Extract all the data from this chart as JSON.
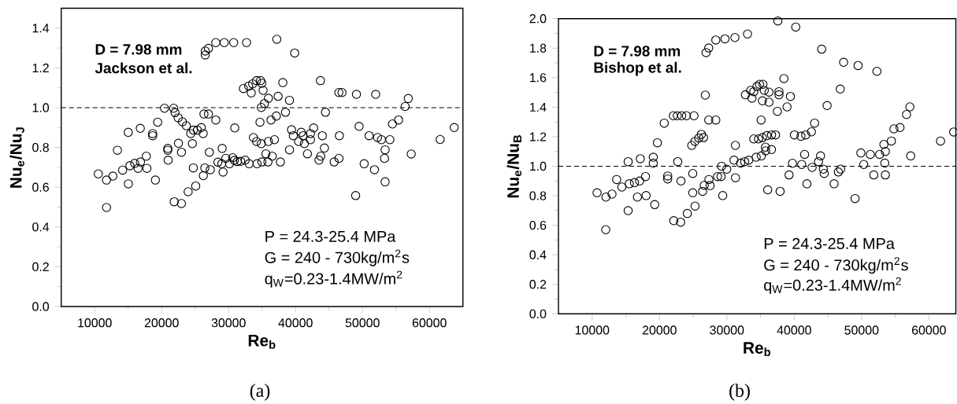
{
  "chart_data": [
    {
      "type": "scatter",
      "xlabel": "Re$_{b}$",
      "ylabel": "Nu$_{e}$/Nu$_{J}$",
      "xlim": [
        5000,
        65000
      ],
      "ylim": [
        0,
        1.5
      ],
      "xticks": [
        10000,
        20000,
        30000,
        40000,
        50000,
        60000
      ],
      "yticks": [
        {
          "value": 0,
          "label": "0.0"
        },
        {
          "value": 0.2,
          "label": "0.2"
        },
        {
          "value": 0.4,
          "label": "0.4"
        },
        {
          "value": 0.6,
          "label": "0.6"
        },
        {
          "value": 0.8,
          "label": "0.8"
        },
        {
          "value": 1.0,
          "label": "1.0"
        },
        {
          "value": 1.2,
          "label": "1.2"
        },
        {
          "value": 1.4,
          "label": "1.4"
        }
      ],
      "grid": false,
      "marker": "circle",
      "ref_lines": [
        {
          "axis": "y",
          "value": 1.0,
          "line_style": "dashed",
          "color": "#000000"
        }
      ],
      "annotations": [
        "D = 7.98 mm",
        "Jackson et al.",
        "P = 24.3-25.4 MPa",
        "G = 240 - 730kg/m$^{2}$s",
        "q$_{W}$=0.23-1.4MW/m$^{2}$",
        "(a)"
      ],
      "series": [
        {
          "color": "#000000",
          "x": [
            26520,
            26520,
            26990,
            28090,
            29350,
            30760,
            32680,
            37200,
            39870,
            32210,
            33000,
            33590,
            34180,
            34770,
            34960,
            35160,
            33390,
            38100,
            35950,
            37400,
            39090,
            35360,
            34890,
            43720,
            46470,
            46940,
            49100,
            51970,
            56840,
            56370,
            44470,
            38500,
            37130,
            36340,
            34690,
            55390,
            54480,
            49500,
            42700,
            39400,
            40850,
            42230,
            39670,
            41130,
            40460,
            41320,
            42230,
            44000,
            46550,
            50990,
            52250,
            52830,
            54090,
            33710,
            34180,
            34890,
            35950,
            36850,
            61600,
            63700,
            20430,
            21800,
            22000,
            22470,
            23100,
            23690,
            24360,
            24750,
            25340,
            25930,
            26200,
            24590,
            26320,
            26990,
            28090,
            30920,
            19410,
            16810,
            15010,
            18660,
            18660,
            10540,
            11770,
            11770,
            12720,
            13400,
            14170,
            15030,
            15260,
            15980,
            16480,
            16840,
            17710,
            17800,
            19070,
            20920,
            20920,
            20970,
            21880,
            22510,
            22960,
            22960,
            23960,
            24730,
            25090,
            26230,
            26450,
            27270,
            27130,
            29040,
            28400,
            28990,
            29170,
            29580,
            30130,
            30630,
            30850,
            31310,
            31800,
            32480,
            33070,
            34250,
            34980,
            35570,
            35880,
            36520,
            37740,
            39100,
            41780,
            43500,
            43770,
            44320,
            45770,
            46490,
            48980,
            50250,
            51790,
            53380,
            53290,
            53380,
            57280
          ],
          "values": [
            1.265,
            1.285,
            1.298,
            1.327,
            1.327,
            1.327,
            1.327,
            1.344,
            1.275,
            1.096,
            1.109,
            1.12,
            1.136,
            1.136,
            1.123,
            1.087,
            1.074,
            1.126,
            1.047,
            1.057,
            1.037,
            1.021,
            1.001,
            1.136,
            1.076,
            1.076,
            1.067,
            1.067,
            1.046,
            1.006,
            0.977,
            0.977,
            0.958,
            0.938,
            0.927,
            0.938,
            0.918,
            0.906,
            0.898,
            0.889,
            0.876,
            0.87,
            0.859,
            0.859,
            0.83,
            0.819,
            0.839,
            0.859,
            0.859,
            0.859,
            0.85,
            0.839,
            0.839,
            0.85,
            0.83,
            0.819,
            0.83,
            0.839,
            0.84,
            0.9,
            0.997,
            0.997,
            0.975,
            0.949,
            0.929,
            0.909,
            0.87,
            0.887,
            0.887,
            0.9,
            0.87,
            0.819,
            0.968,
            0.968,
            0.938,
            0.898,
            0.927,
            0.896,
            0.876,
            0.87,
            0.859,
            0.667,
            0.636,
            0.498,
            0.656,
            0.786,
            0.686,
            0.617,
            0.708,
            0.72,
            0.695,
            0.727,
            0.756,
            0.695,
            0.636,
            0.795,
            0.786,
            0.736,
            0.527,
            0.821,
            0.776,
            0.518,
            0.577,
            0.697,
            0.606,
            0.658,
            0.697,
            0.688,
            0.776,
            0.795,
            0.726,
            0.718,
            0.676,
            0.745,
            0.718,
            0.748,
            0.735,
            0.729,
            0.73,
            0.736,
            0.718,
            0.718,
            0.727,
            0.768,
            0.727,
            0.756,
            0.727,
            0.788,
            0.768,
            0.736,
            0.756,
            0.797,
            0.727,
            0.745,
            0.558,
            0.718,
            0.688,
            0.788,
            0.745,
            0.627,
            0.767
          ]
        }
      ]
    },
    {
      "type": "scatter",
      "xlabel": "Re$_{b}$",
      "ylabel": "Nu$_{e}$/Nu$_{B}$",
      "xlim": [
        5000,
        64000
      ],
      "ylim": [
        0,
        2.0
      ],
      "xticks": [
        10000,
        20000,
        30000,
        40000,
        50000,
        60000
      ],
      "yticks": [
        {
          "value": 0,
          "label": "0.0"
        },
        {
          "value": 0.2,
          "label": "0.2"
        },
        {
          "value": 0.4,
          "label": "0.4"
        },
        {
          "value": 0.6,
          "label": "0.6"
        },
        {
          "value": 0.8,
          "label": "0.8"
        },
        {
          "value": 1.0,
          "label": "1.0"
        },
        {
          "value": 1.2,
          "label": "1.2"
        },
        {
          "value": 1.4,
          "label": "1.4"
        },
        {
          "value": 1.6,
          "label": "1.6"
        },
        {
          "value": 1.8,
          "label": "1.8"
        },
        {
          "value": 2.0,
          "label": "2.0"
        }
      ],
      "grid": false,
      "marker": "circle",
      "ref_lines": [
        {
          "axis": "y",
          "value": 1.0,
          "line_style": "dashed",
          "color": "#000000"
        }
      ],
      "annotations": [
        "D = 7.98 mm",
        "Bishop et al.",
        "P = 24.3-25.4 MPa",
        "G = 240 - 730kg/m$^{2}$s",
        "q$_{W}$=0.23-1.4MW/m$^{2}$",
        "(b)"
      ],
      "series": [
        {
          "color": "#000000",
          "x": [
            26920,
            27310,
            28360,
            29720,
            31200,
            33070,
            37580,
            40230,
            44080,
            47340,
            49480,
            52280,
            46840,
            44890,
            38470,
            39440,
            38940,
            37510,
            37740,
            37740,
            32760,
            33540,
            33730,
            34000,
            34470,
            34860,
            35360,
            35560,
            35280,
            36260,
            36260,
            35090,
            43030,
            34000,
            34700,
            35280,
            35940,
            36640,
            37230,
            40030,
            41010,
            41710,
            42560,
            54430,
            54810,
            55710,
            56680,
            57180,
            61730,
            63680,
            26800,
            27310,
            28360,
            20700,
            22060,
            22640,
            23300,
            24000,
            25130,
            19690,
            24790,
            25250,
            25840,
            26220,
            26540,
            31270,
            10730,
            12050,
            12950,
            12020,
            13640,
            14410,
            15350,
            15350,
            15520,
            16290,
            16720,
            17060,
            17150,
            17920,
            18010,
            19080,
            19080,
            19290,
            21220,
            21220,
            22120,
            22710,
            23140,
            23190,
            24130,
            24940,
            24940,
            25280,
            26400,
            26650,
            27510,
            27340,
            28620,
            29140,
            29220,
            29390,
            29990,
            31060,
            31280,
            32050,
            32650,
            33250,
            34360,
            35130,
            35730,
            35770,
            36630,
            36070,
            37910,
            39240,
            39750,
            41120,
            41550,
            41890,
            42660,
            43610,
            43910,
            44330,
            44460,
            45920,
            46560,
            46900,
            49040,
            49900,
            50330,
            51310,
            51820,
            52680,
            53320,
            53450,
            53540,
            53540,
            57300
          ],
          "values": [
            1.77,
            1.801,
            1.855,
            1.863,
            1.872,
            1.896,
            1.984,
            1.943,
            1.793,
            1.704,
            1.682,
            1.643,
            1.523,
            1.411,
            1.594,
            1.473,
            1.402,
            1.372,
            1.505,
            1.484,
            1.484,
            1.514,
            1.461,
            1.505,
            1.54,
            1.555,
            1.555,
            1.514,
            1.443,
            1.502,
            1.434,
            1.313,
            1.292,
            1.185,
            1.185,
            1.194,
            1.207,
            1.212,
            1.212,
            1.212,
            1.203,
            1.212,
            1.233,
            1.171,
            1.253,
            1.262,
            1.35,
            1.402,
            1.171,
            1.232,
            1.482,
            1.313,
            1.313,
            1.292,
            1.342,
            1.342,
            1.342,
            1.342,
            1.342,
            1.159,
            1.141,
            1.168,
            1.191,
            1.216,
            1.194,
            1.141,
            0.82,
            0.791,
            0.811,
            0.57,
            0.91,
            0.859,
            1.031,
            0.699,
            0.881,
            0.889,
            0.791,
            0.9,
            1.051,
            0.93,
            0.801,
            1.061,
            1.021,
            0.74,
            0.934,
            0.914,
            0.631,
            1.031,
            0.621,
            0.9,
            0.68,
            0.951,
            0.82,
            0.73,
            0.83,
            0.871,
            0.869,
            0.91,
            0.93,
            0.93,
            1.0,
            0.801,
            0.98,
            1.041,
            0.922,
            1.021,
            1.031,
            1.041,
            1.061,
            1.07,
            1.129,
            1.104,
            1.113,
            0.84,
            0.83,
            0.941,
            1.02,
            1.012,
            1.08,
            0.881,
            0.992,
            1.031,
            1.07,
            0.98,
            0.951,
            0.881,
            0.961,
            0.98,
            0.781,
            1.09,
            1.012,
            1.08,
            0.941,
            1.08,
            1.148,
            1.021,
            1.1,
            0.941,
            1.07
          ]
        }
      ]
    }
  ]
}
